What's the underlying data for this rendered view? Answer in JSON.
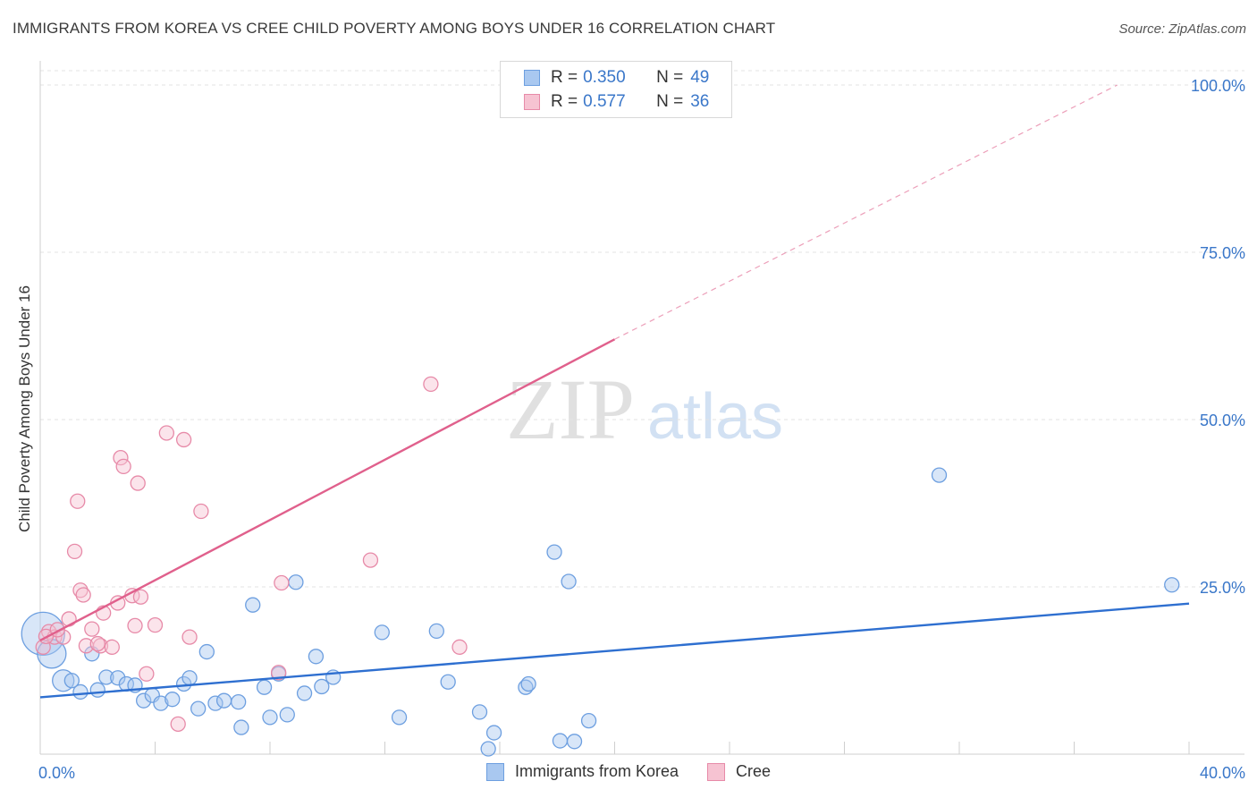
{
  "title": "IMMIGRANTS FROM KOREA VS CREE CHILD POVERTY AMONG BOYS UNDER 16 CORRELATION CHART",
  "source": "Source: ZipAtlas.com",
  "watermark": {
    "zip": "ZIP",
    "atlas": "atlas"
  },
  "legend": {
    "series": [
      {
        "r_label": "R =",
        "r_value": "0.350",
        "n_label": "N =",
        "n_value": "49",
        "color": "#a9c8f0",
        "border": "#6d9fe0"
      },
      {
        "r_label": "R =",
        "r_value": "0.577",
        "n_label": "N =",
        "n_value": "36",
        "color": "#f6c3d2",
        "border": "#e78aa8"
      }
    ]
  },
  "bottom_legend": [
    {
      "label": "Immigrants from Korea",
      "color": "#a9c8f0",
      "border": "#6d9fe0"
    },
    {
      "label": "Cree",
      "color": "#f6c3d2",
      "border": "#e78aa8"
    }
  ],
  "chart_data": {
    "type": "scatter",
    "title": "IMMIGRANTS FROM KOREA VS CREE CHILD POVERTY AMONG BOYS UNDER 16 CORRELATION CHART",
    "xlabel": "",
    "ylabel": "Child Poverty Among Boys Under 16",
    "xlim": [
      0,
      40
    ],
    "ylim": [
      0,
      100
    ],
    "x_tick_labels": [
      "0.0%",
      "40.0%"
    ],
    "y_tick_labels": [
      "25.0%",
      "50.0%",
      "75.0%",
      "100.0%"
    ],
    "y_ticks": [
      25,
      50,
      75,
      100
    ],
    "grid": true,
    "legend_position": "top-center",
    "series": [
      {
        "name": "Immigrants from Korea",
        "color": "#6d9fe0",
        "fill": "#a9c8f0",
        "line_color": "#2e6fd0",
        "trend": {
          "x0": 0,
          "y0": 8.5,
          "x1": 40,
          "y1": 22.5
        },
        "points": [
          [
            0.1,
            18.0,
            3
          ],
          [
            0.4,
            15.0,
            2
          ],
          [
            0.8,
            11.0,
            1.5
          ],
          [
            1.1,
            11.0,
            1
          ],
          [
            1.4,
            9.3,
            1
          ],
          [
            1.8,
            15.0,
            1
          ],
          [
            2.0,
            9.6,
            1
          ],
          [
            2.3,
            11.5,
            1
          ],
          [
            2.7,
            11.4,
            1
          ],
          [
            3.0,
            10.5,
            1
          ],
          [
            3.3,
            10.3,
            1
          ],
          [
            3.6,
            8.0,
            1
          ],
          [
            3.9,
            8.8,
            1
          ],
          [
            4.2,
            7.6,
            1
          ],
          [
            4.6,
            8.2,
            1
          ],
          [
            5.0,
            10.5,
            1
          ],
          [
            5.2,
            11.4,
            1
          ],
          [
            5.5,
            6.8,
            1
          ],
          [
            5.8,
            15.3,
            1
          ],
          [
            6.1,
            7.6,
            1
          ],
          [
            6.4,
            8.0,
            1
          ],
          [
            6.9,
            7.8,
            1
          ],
          [
            7.0,
            4.0,
            1
          ],
          [
            7.4,
            22.3,
            1
          ],
          [
            7.8,
            10.0,
            1
          ],
          [
            8.0,
            5.5,
            1
          ],
          [
            8.3,
            12.0,
            1
          ],
          [
            8.6,
            5.9,
            1
          ],
          [
            8.9,
            25.7,
            1
          ],
          [
            9.2,
            9.1,
            1
          ],
          [
            9.6,
            14.6,
            1
          ],
          [
            9.8,
            10.1,
            1
          ],
          [
            10.2,
            11.5,
            1
          ],
          [
            11.9,
            18.2,
            1
          ],
          [
            12.5,
            5.5,
            1
          ],
          [
            13.8,
            18.4,
            1
          ],
          [
            14.2,
            10.8,
            1
          ],
          [
            15.3,
            6.3,
            1
          ],
          [
            15.6,
            0.8,
            1
          ],
          [
            15.8,
            3.2,
            1
          ],
          [
            16.9,
            10.0,
            1
          ],
          [
            17.0,
            10.5,
            1
          ],
          [
            17.9,
            30.2,
            1
          ],
          [
            18.1,
            2.0,
            1
          ],
          [
            18.6,
            1.9,
            1
          ],
          [
            18.4,
            25.8,
            1
          ],
          [
            19.1,
            5.0,
            1
          ],
          [
            31.3,
            41.7,
            1
          ],
          [
            39.4,
            25.3,
            1
          ]
        ]
      },
      {
        "name": "Cree",
        "color": "#e78aa8",
        "fill": "#f6c3d2",
        "line_color": "#e0608c",
        "trend": {
          "x0": 0,
          "y0": 17.0,
          "x1": 20,
          "y1": 62.0,
          "dashed_to": {
            "x": 37.5,
            "y": 100
          }
        },
        "points": [
          [
            0.1,
            16.0,
            1
          ],
          [
            0.3,
            18.3,
            1
          ],
          [
            0.5,
            17.5,
            1
          ],
          [
            0.8,
            17.5,
            1
          ],
          [
            1.0,
            20.2,
            1
          ],
          [
            1.2,
            30.3,
            1
          ],
          [
            1.3,
            37.8,
            1
          ],
          [
            1.4,
            24.5,
            1
          ],
          [
            1.5,
            23.8,
            1
          ],
          [
            1.6,
            16.2,
            1
          ],
          [
            1.8,
            18.7,
            1
          ],
          [
            2.1,
            16.2,
            1
          ],
          [
            2.2,
            21.1,
            1
          ],
          [
            2.5,
            16.0,
            1
          ],
          [
            2.7,
            22.6,
            1
          ],
          [
            2.8,
            44.3,
            1
          ],
          [
            2.9,
            43.0,
            1
          ],
          [
            3.2,
            23.7,
            1
          ],
          [
            3.3,
            19.2,
            1
          ],
          [
            3.4,
            40.5,
            1
          ],
          [
            3.5,
            23.5,
            1
          ],
          [
            3.7,
            12.0,
            1
          ],
          [
            4.0,
            19.3,
            1
          ],
          [
            4.4,
            48.0,
            1
          ],
          [
            4.8,
            4.5,
            1
          ],
          [
            5.0,
            47.0,
            1
          ],
          [
            5.2,
            17.5,
            1
          ],
          [
            5.6,
            36.3,
            1
          ],
          [
            8.3,
            12.2,
            1
          ],
          [
            8.4,
            25.6,
            1
          ],
          [
            11.5,
            29.0,
            1
          ],
          [
            13.6,
            55.3,
            1
          ],
          [
            14.6,
            16.0,
            1
          ],
          [
            0.2,
            17.6,
            1
          ],
          [
            0.6,
            18.6,
            1
          ],
          [
            2.0,
            16.5,
            1
          ]
        ]
      }
    ]
  }
}
